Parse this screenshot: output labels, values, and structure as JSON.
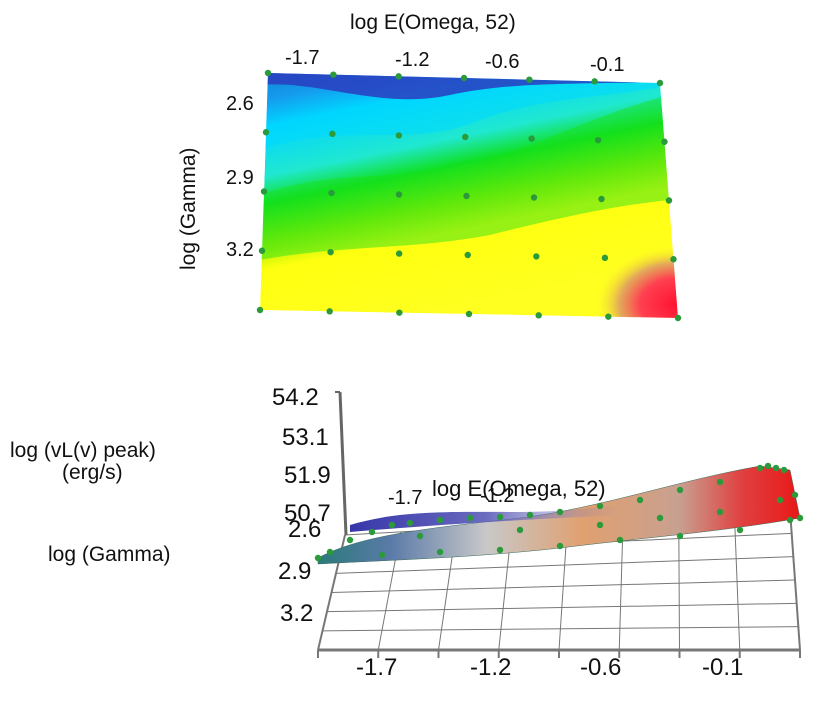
{
  "chart_data": [
    {
      "type": "heatmap",
      "view": "top",
      "x_label": "log E(Omega, 52)",
      "y_label": "log (Gamma)",
      "x_ticks": [
        "-1.7",
        "-1.2",
        "-0.6",
        "-0.1"
      ],
      "y_ticks": [
        "2.6",
        "2.9",
        "3.2"
      ],
      "x_range": [
        -1.95,
        0.05
      ],
      "y_range": [
        2.45,
        3.45
      ],
      "colormap": [
        "#2020a0",
        "#00e0ff",
        "#00e000",
        "#ffff00",
        "#f0a050",
        "#ff2020"
      ],
      "sample_points_color": "#2a9a3a"
    },
    {
      "type": "surface",
      "view": "perspective",
      "z_label_line1": "log (vL(v) peak)",
      "z_label_line2": "(erg/s)",
      "y_label": "log (Gamma)",
      "x_label": "log E(Omega, 52)",
      "z_ticks": [
        "54.2",
        "53.1",
        "51.9",
        "50.7"
      ],
      "y_ticks": [
        "2.6",
        "2.9",
        "3.2"
      ],
      "x_ticks": [
        "-1.7",
        "-1.2",
        "-0.6",
        "-0.1"
      ],
      "z_range": [
        50.7,
        54.2
      ],
      "surface_colors": [
        "#2a3a9a",
        "#c0c8d0",
        "#e0a070",
        "#e02020"
      ],
      "sample_points_color": "#2a9a3a"
    }
  ]
}
